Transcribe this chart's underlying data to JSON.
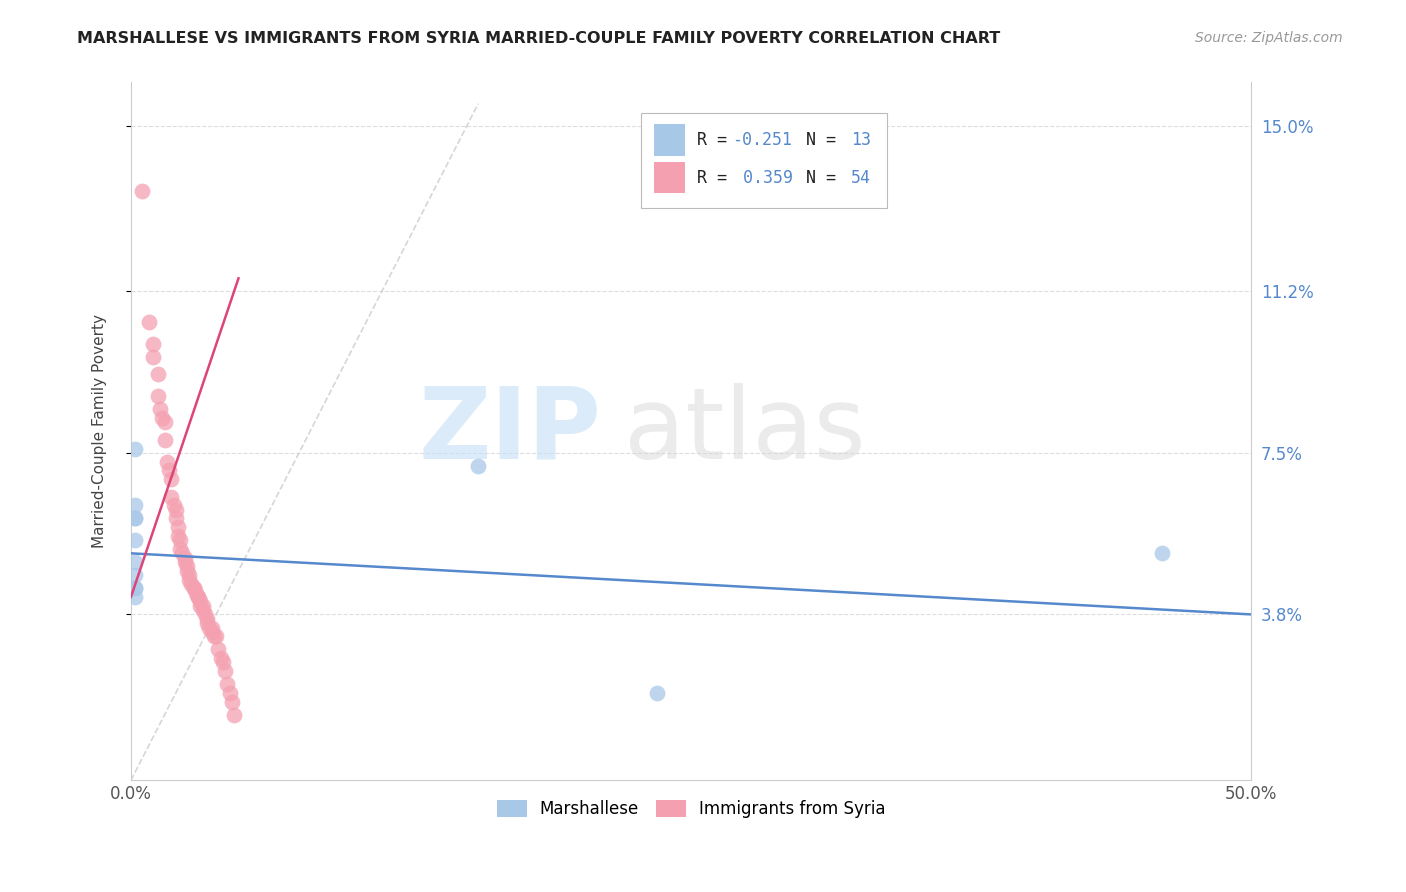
{
  "title": "MARSHALLESE VS IMMIGRANTS FROM SYRIA MARRIED-COUPLE FAMILY POVERTY CORRELATION CHART",
  "source": "Source: ZipAtlas.com",
  "ylabel": "Married-Couple Family Poverty",
  "xlim": [
    0.0,
    0.5
  ],
  "ylim": [
    0.0,
    0.16
  ],
  "ytick_positions": [
    0.038,
    0.075,
    0.112,
    0.15
  ],
  "ytick_labels": [
    "3.8%",
    "7.5%",
    "11.2%",
    "15.0%"
  ],
  "color_blue": "#a8c8e8",
  "color_pink": "#f4a0b0",
  "color_blue_line": "#5588cc",
  "color_pink_line": "#dd4477",
  "color_diag": "#cccccc",
  "marshallese_x": [
    0.002,
    0.002,
    0.002,
    0.002,
    0.002,
    0.002,
    0.002,
    0.002,
    0.002,
    0.155,
    0.46,
    0.235,
    0.002
  ],
  "marshallese_y": [
    0.076,
    0.063,
    0.06,
    0.055,
    0.05,
    0.047,
    0.044,
    0.044,
    0.06,
    0.072,
    0.052,
    0.02,
    0.042
  ],
  "syria_x": [
    0.005,
    0.008,
    0.01,
    0.01,
    0.012,
    0.012,
    0.013,
    0.014,
    0.015,
    0.015,
    0.016,
    0.017,
    0.018,
    0.018,
    0.019,
    0.02,
    0.02,
    0.021,
    0.021,
    0.022,
    0.022,
    0.023,
    0.024,
    0.024,
    0.025,
    0.025,
    0.026,
    0.026,
    0.027,
    0.028,
    0.028,
    0.029,
    0.03,
    0.03,
    0.031,
    0.031,
    0.032,
    0.032,
    0.033,
    0.034,
    0.034,
    0.035,
    0.036,
    0.036,
    0.037,
    0.038,
    0.039,
    0.04,
    0.041,
    0.042,
    0.043,
    0.044,
    0.045,
    0.046
  ],
  "syria_y": [
    0.135,
    0.105,
    0.1,
    0.097,
    0.093,
    0.088,
    0.085,
    0.083,
    0.082,
    0.078,
    0.073,
    0.071,
    0.069,
    0.065,
    0.063,
    0.062,
    0.06,
    0.058,
    0.056,
    0.055,
    0.053,
    0.052,
    0.051,
    0.05,
    0.049,
    0.048,
    0.047,
    0.046,
    0.045,
    0.044,
    0.044,
    0.043,
    0.042,
    0.042,
    0.041,
    0.04,
    0.04,
    0.039,
    0.038,
    0.037,
    0.036,
    0.035,
    0.035,
    0.034,
    0.033,
    0.033,
    0.03,
    0.028,
    0.027,
    0.025,
    0.022,
    0.02,
    0.018,
    0.015
  ],
  "blue_line_x": [
    0.0,
    0.5
  ],
  "blue_line_y": [
    0.052,
    0.038
  ],
  "pink_line_x": [
    0.0,
    0.048
  ],
  "pink_line_y": [
    0.042,
    0.115
  ],
  "diag_line_x": [
    0.0,
    0.155
  ],
  "diag_line_y": [
    0.0,
    0.155
  ]
}
